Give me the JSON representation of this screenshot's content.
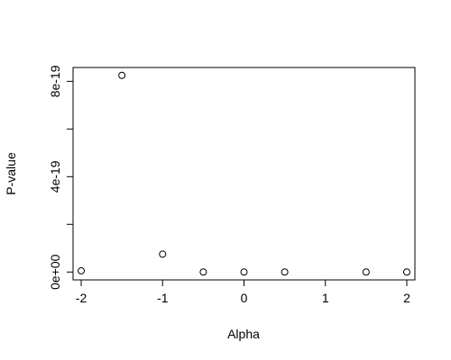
{
  "chart_data": {
    "type": "scatter",
    "title": "",
    "xlabel": "Alpha",
    "ylabel": "P-value",
    "xlim": [
      -2.1,
      2.1
    ],
    "ylim": [
      -3.3e-20,
      8.58e-19
    ],
    "x_ticks": [
      -2,
      -1,
      0,
      1,
      2
    ],
    "x_tick_labels": [
      "-2",
      "-1",
      "0",
      "1",
      "2"
    ],
    "y_ticks": [
      0,
      2e-19,
      4e-19,
      6e-19,
      8e-19
    ],
    "y_tick_labels": [
      "0e+00",
      "",
      "4e-19",
      "",
      "8e-19"
    ],
    "grid": false,
    "marker": "open-circle",
    "series": [
      {
        "x": [
          -2,
          -1.5,
          -1,
          -0.5,
          0,
          0.5,
          1.5,
          2
        ],
        "y": [
          5e-21,
          8.25e-19,
          7.5e-20,
          0,
          0,
          0,
          0,
          0
        ]
      }
    ]
  }
}
